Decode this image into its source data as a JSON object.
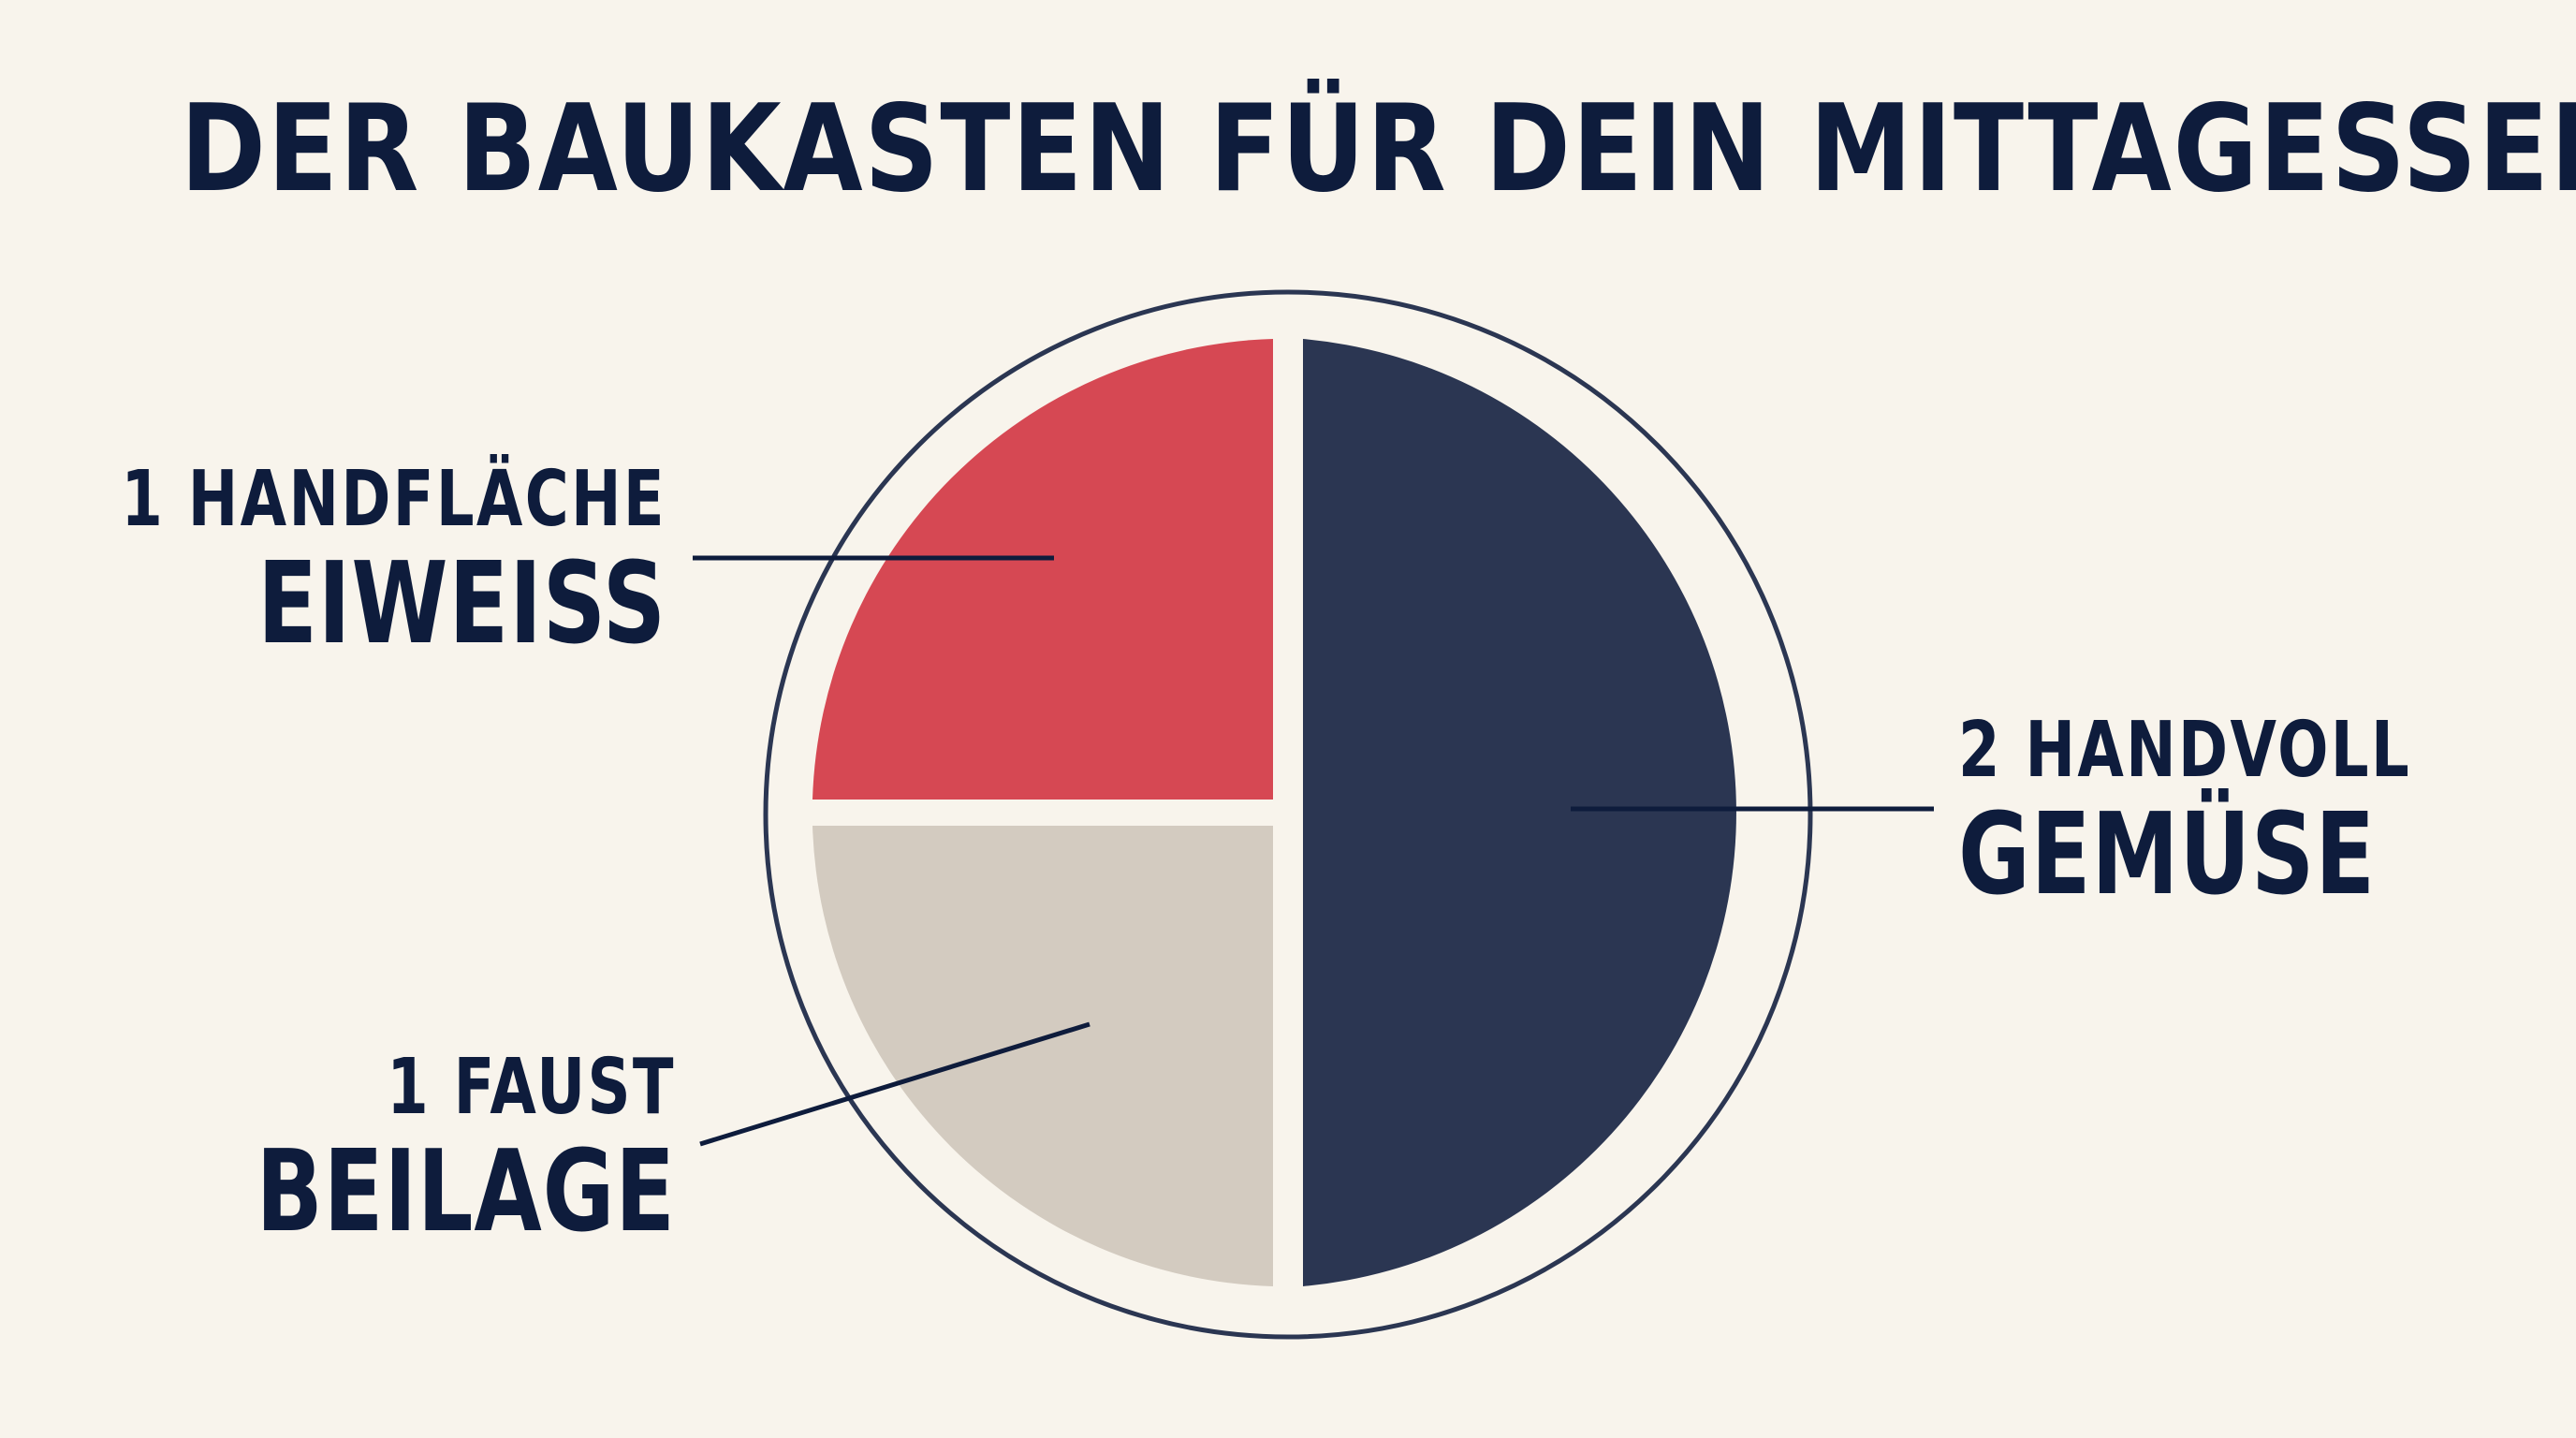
{
  "title": "DER BAUKASTEN FÜR DEIN MITTAGESSEN",
  "colors": {
    "background": "#f8f4ec",
    "ink": "#0e1c3c",
    "eiweiss": "#d64853",
    "beilage": "#d3cbc0",
    "gemuese": "#2b3652",
    "plate_rim": "#2b3652"
  },
  "segments": [
    {
      "key": "eiweiss",
      "amount": "1 HANDFLÄCHE",
      "name": "EIWEISS",
      "fraction": 0.25
    },
    {
      "key": "beilage",
      "amount": "1 FAUST",
      "name": "BEILAGE",
      "fraction": 0.25
    },
    {
      "key": "gemuese",
      "amount": "2 HANDVOLL",
      "name": "GEMÜSE",
      "fraction": 0.5
    }
  ]
}
